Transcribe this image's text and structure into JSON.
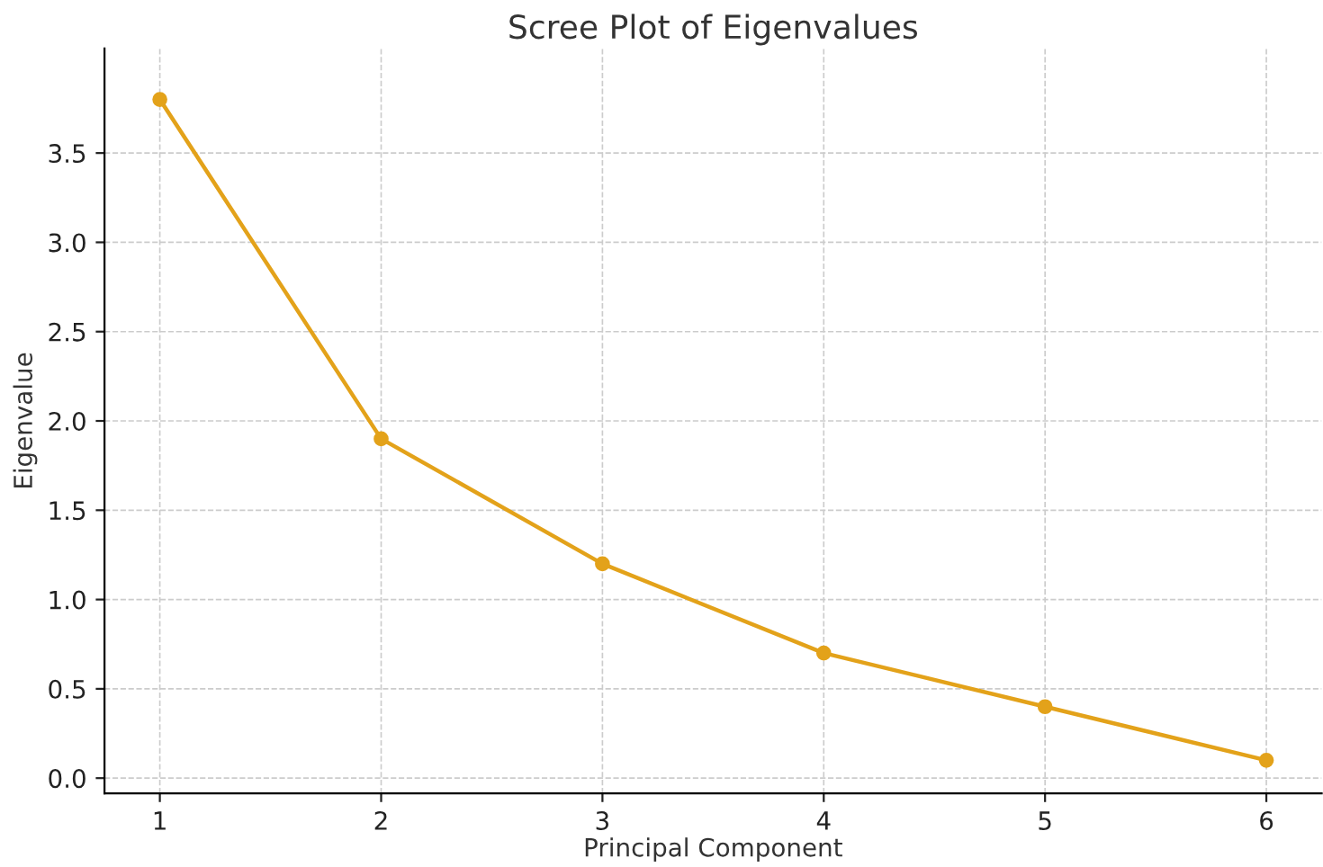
{
  "chart_data": {
    "type": "line",
    "title": "Scree Plot of Eigenvalues",
    "xlabel": "Principal Component",
    "ylabel": "Eigenvalue",
    "x": [
      1,
      2,
      3,
      4,
      5,
      6
    ],
    "series": [
      {
        "color": "#e3a21a",
        "values": [
          3.8,
          1.9,
          1.2,
          0.7,
          0.4,
          0.1
        ]
      }
    ],
    "xlim": [
      0.75,
      6.25
    ],
    "ylim": [
      -0.085,
      4.085
    ],
    "xticks": [
      1,
      2,
      3,
      4,
      5,
      6
    ],
    "yticks": [
      {
        "value": 0,
        "label": "0.0"
      },
      0.5,
      {
        "value": 1,
        "label": "1.0"
      },
      1.5,
      {
        "value": 2,
        "label": "2.0"
      },
      2.5,
      {
        "value": 3,
        "label": "3.0"
      },
      3.5
    ],
    "grid": true,
    "marker": "circle",
    "line_style": "solid",
    "legend": false
  }
}
